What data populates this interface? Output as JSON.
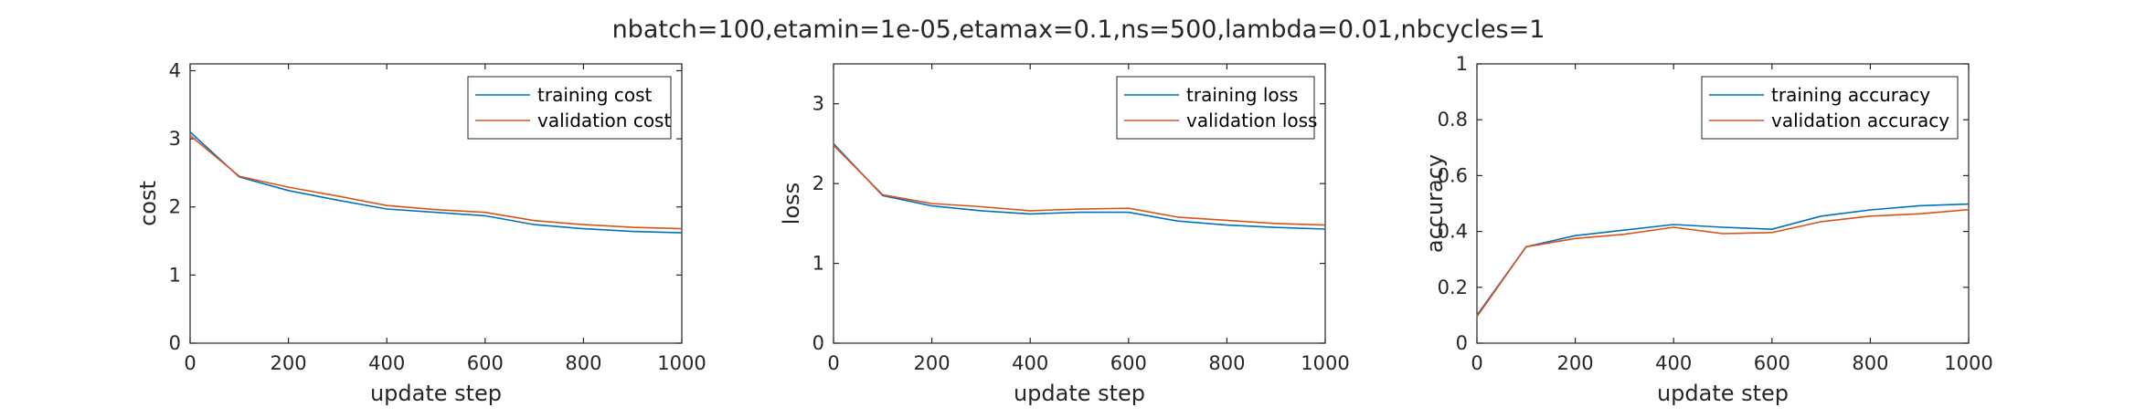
{
  "suptitle": "nbatch=100,etamin=1e-05,etamax=0.1,ns=500,lambda=0.01,nbcycles=1",
  "chart_data": [
    {
      "type": "line",
      "xlabel": "update step",
      "ylabel": "cost",
      "xlim": [
        0,
        1000
      ],
      "ylim": [
        0,
        4.1
      ],
      "xticks": [
        0,
        200,
        400,
        600,
        800,
        1000
      ],
      "yticks": [
        0,
        1,
        2,
        3,
        4
      ],
      "xtick_labels": [
        "0",
        "200",
        "400",
        "600",
        "800",
        "1000"
      ],
      "ytick_labels": [
        "0",
        "1",
        "2",
        "3",
        "4"
      ],
      "grid": false,
      "legend_position": "top-right",
      "x": [
        0,
        100,
        200,
        300,
        400,
        500,
        600,
        700,
        800,
        900,
        1000
      ],
      "series": [
        {
          "name": "training cost",
          "color": "#0072BD",
          "values": [
            3.1,
            2.44,
            2.24,
            2.1,
            1.97,
            1.92,
            1.87,
            1.74,
            1.68,
            1.64,
            1.62
          ]
        },
        {
          "name": "validation cost",
          "color": "#D95319",
          "values": [
            3.05,
            2.45,
            2.29,
            2.16,
            2.02,
            1.96,
            1.92,
            1.8,
            1.74,
            1.7,
            1.68
          ]
        }
      ]
    },
    {
      "type": "line",
      "xlabel": "update step",
      "ylabel": "loss",
      "xlim": [
        0,
        1000
      ],
      "ylim": [
        0,
        3.5
      ],
      "xticks": [
        0,
        200,
        400,
        600,
        800,
        1000
      ],
      "yticks": [
        0,
        1,
        2,
        3
      ],
      "xtick_labels": [
        "0",
        "200",
        "400",
        "600",
        "800",
        "1000"
      ],
      "ytick_labels": [
        "0",
        "1",
        "2",
        "3"
      ],
      "grid": false,
      "legend_position": "top-right",
      "x": [
        0,
        100,
        200,
        300,
        400,
        500,
        600,
        700,
        800,
        900,
        1000
      ],
      "series": [
        {
          "name": "training loss",
          "color": "#0072BD",
          "values": [
            2.5,
            1.85,
            1.72,
            1.66,
            1.62,
            1.64,
            1.64,
            1.53,
            1.48,
            1.45,
            1.43
          ]
        },
        {
          "name": "validation loss",
          "color": "#D95319",
          "values": [
            2.48,
            1.86,
            1.75,
            1.71,
            1.66,
            1.68,
            1.69,
            1.58,
            1.54,
            1.5,
            1.48
          ]
        }
      ]
    },
    {
      "type": "line",
      "xlabel": "update step",
      "ylabel": "accuracy",
      "xlim": [
        0,
        1000
      ],
      "ylim": [
        0,
        1
      ],
      "xticks": [
        0,
        200,
        400,
        600,
        800,
        1000
      ],
      "yticks": [
        0,
        0.2,
        0.4,
        0.6,
        0.8,
        1
      ],
      "xtick_labels": [
        "0",
        "200",
        "400",
        "600",
        "800",
        "1000"
      ],
      "ytick_labels": [
        "0",
        "0.2",
        "0.4",
        "0.6",
        "0.8",
        "1"
      ],
      "grid": false,
      "legend_position": "top-right",
      "x": [
        0,
        100,
        200,
        300,
        400,
        500,
        600,
        700,
        800,
        900,
        1000
      ],
      "series": [
        {
          "name": "training accuracy",
          "color": "#0072BD",
          "values": [
            0.1,
            0.345,
            0.385,
            0.405,
            0.425,
            0.415,
            0.408,
            0.455,
            0.477,
            0.492,
            0.498
          ]
        },
        {
          "name": "validation accuracy",
          "color": "#D95319",
          "values": [
            0.095,
            0.345,
            0.375,
            0.39,
            0.415,
            0.392,
            0.396,
            0.435,
            0.455,
            0.463,
            0.478
          ]
        }
      ]
    }
  ]
}
